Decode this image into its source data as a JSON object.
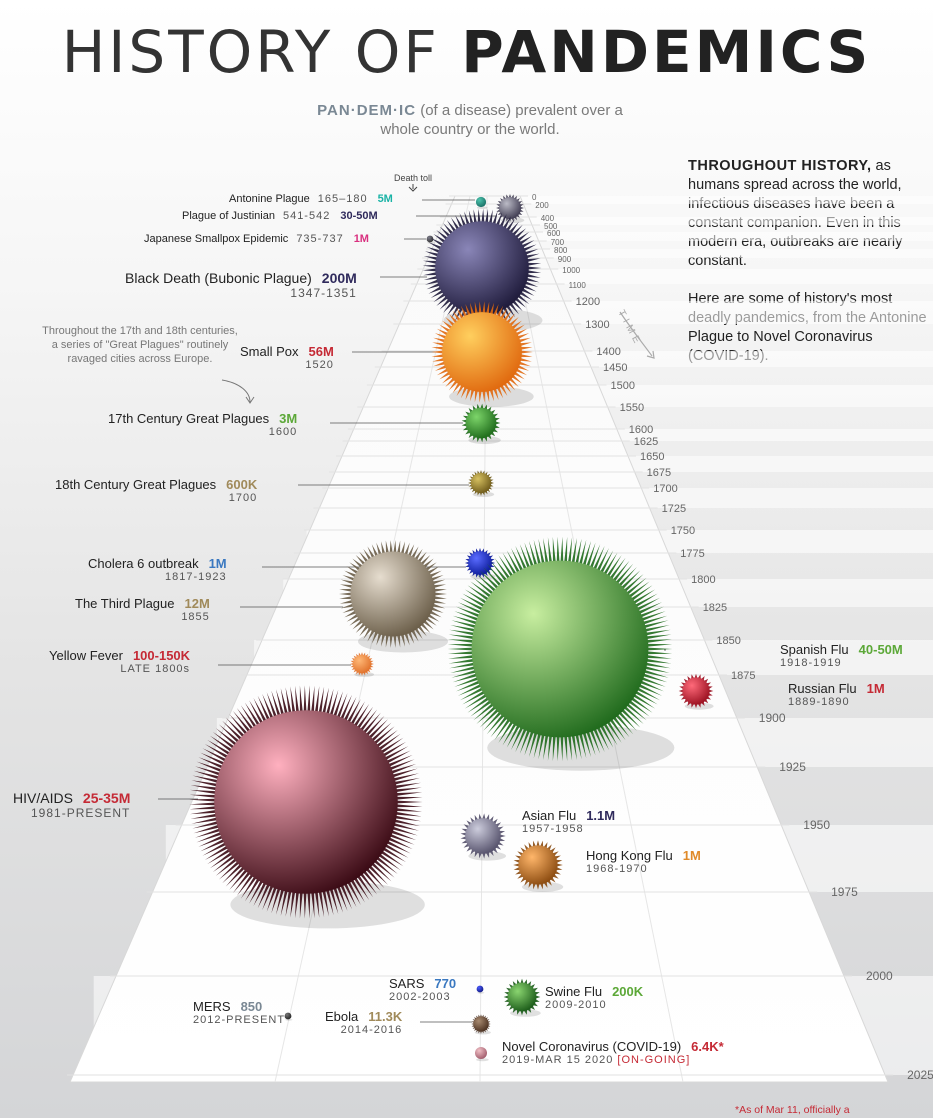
{
  "title": {
    "part1": "HISTORY OF ",
    "part2": "PANDEMICS"
  },
  "definition": {
    "term": "PAN·DEM·IC",
    "text": " (of a disease) prevalent over a whole country or the world."
  },
  "intro": {
    "lead": "THROUGHOUT HISTORY,",
    "p1": " as humans spread across the world, infectious diseases have been a constant companion. Even in this modern era, outbreaks are nearly constant.",
    "p2": "Here are some of history's most deadly pandemics, from the Antonine Plague to Novel Coronavirus (COVID-19)."
  },
  "note": "Throughout the 17th and 18th centuries, a series of \"Great Plagues\" routinely ravaged cities across Europe.",
  "death_toll_label": "Death toll",
  "time_label": "TIME",
  "footnote": "*As of Mar 11, officially a",
  "colors": {
    "teal": "#1ab3a6",
    "navy": "#2f2a5c",
    "pink": "#d9307f",
    "green": "#5ca838",
    "tan": "#a08a5a",
    "blue": "#3a78c0",
    "red": "#c52a35",
    "orange": "#e08a2a",
    "brown": "#a06a30"
  },
  "chart_data": {
    "type": "scatter",
    "x_label": "TIME",
    "year_ticks": [
      0,
      200,
      400,
      500,
      600,
      700,
      800,
      900,
      1000,
      1100,
      1200,
      1300,
      1400,
      1450,
      1500,
      1550,
      1600,
      1625,
      1650,
      1675,
      1700,
      1725,
      1750,
      1775,
      1800,
      1825,
      1850,
      1875,
      1900,
      1925,
      1950,
      1975,
      2000,
      2025
    ],
    "pandemics": [
      {
        "name": "Antonine Plague",
        "dates": "165–180",
        "toll": "5M",
        "year": 172
      },
      {
        "name": "Plague of Justinian",
        "dates": "541-542",
        "toll": "30-50M",
        "year": 541
      },
      {
        "name": "Japanese Smallpox Epidemic",
        "dates": "735-737",
        "toll": "1M",
        "year": 736
      },
      {
        "name": "Black Death (Bubonic Plague)",
        "dates": "1347-1351",
        "toll": "200M",
        "year": 1349
      },
      {
        "name": "Small Pox",
        "dates": "1520",
        "toll": "56M",
        "year": 1520
      },
      {
        "name": "17th Century Great Plagues",
        "dates": "1600",
        "toll": "3M",
        "year": 1600
      },
      {
        "name": "18th Century Great Plagues",
        "dates": "1700",
        "toll": "600K",
        "year": 1700
      },
      {
        "name": "Cholera 6 outbreak",
        "dates": "1817-1923",
        "toll": "1M",
        "year": 1817
      },
      {
        "name": "The Third Plague",
        "dates": "1855",
        "toll": "12M",
        "year": 1855
      },
      {
        "name": "Yellow Fever",
        "dates": "LATE 1800s",
        "toll": "100-150K",
        "year": 1880
      },
      {
        "name": "Spanish Flu",
        "dates": "1918-1919",
        "toll": "40-50M",
        "year": 1918
      },
      {
        "name": "Russian Flu",
        "dates": "1889-1890",
        "toll": "1M",
        "year": 1889
      },
      {
        "name": "HIV/AIDS",
        "dates": "1981-PRESENT",
        "toll": "25-35M",
        "year": 1981
      },
      {
        "name": "Asian Flu",
        "dates": "1957-1958",
        "toll": "1.1M",
        "year": 1957
      },
      {
        "name": "Hong Kong Flu",
        "dates": "1968-1970",
        "toll": "1M",
        "year": 1968
      },
      {
        "name": "SARS",
        "dates": "2002-2003",
        "toll": "770",
        "year": 2002
      },
      {
        "name": "Swine Flu",
        "dates": "2009-2010",
        "toll": "200K",
        "year": 2009
      },
      {
        "name": "MERS",
        "dates": "2012-PRESENT",
        "toll": "850",
        "year": 2012
      },
      {
        "name": "Ebola",
        "dates": "2014-2016",
        "toll": "11.3K",
        "year": 2014
      },
      {
        "name": "Novel Coronavirus (COVID-19)",
        "dates": "2019-MAR 15 2020",
        "status": "[ON-GOING]",
        "toll": "6.4K*",
        "year": 2019
      }
    ]
  }
}
